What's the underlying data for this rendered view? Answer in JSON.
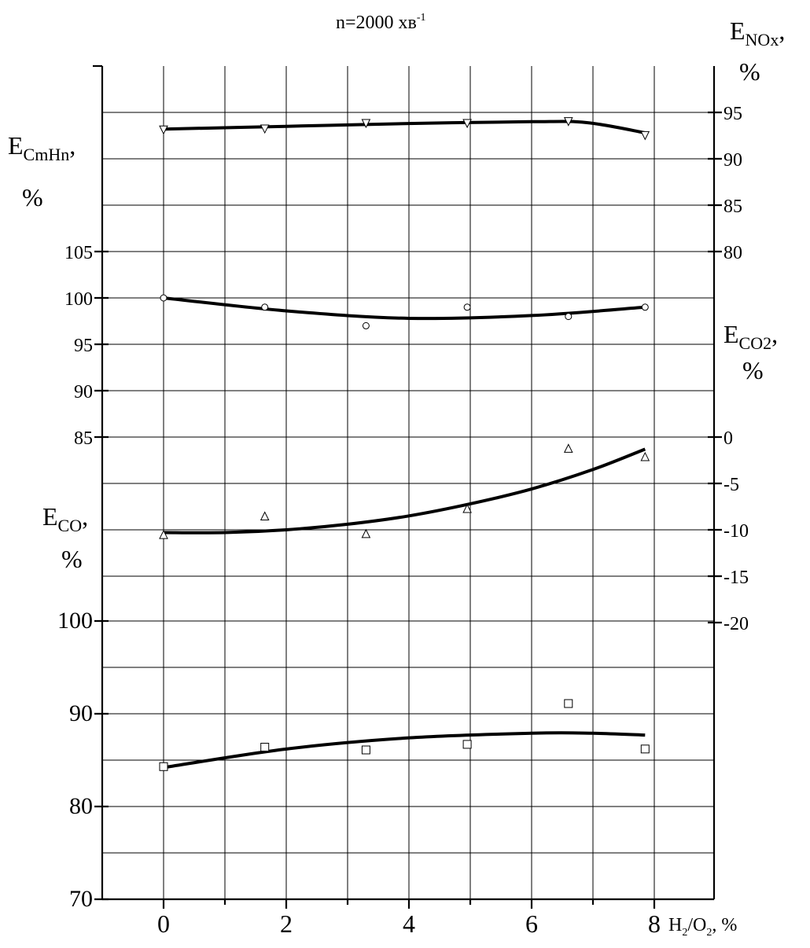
{
  "chart_data": {
    "type": "line",
    "title": "n=2000 хв",
    "title_superscript": "-1",
    "xlabel": "H",
    "xlabel_sub": "2",
    "xlabel_mid": "/O",
    "xlabel_tail": ", %",
    "xlim": [
      -1,
      9
    ],
    "x_ticks": [
      0,
      2,
      4,
      6,
      8
    ],
    "grid": true,
    "panels": [
      {
        "id": "cmhn",
        "ylabel_main": "E",
        "ylabel_sub": "CmHn",
        "ylabel_tail": ",",
        "ylabel_unit": "%",
        "axis": "left",
        "ticks": [
          85,
          90,
          95,
          100,
          105
        ],
        "series": [
          {
            "marker": "circle",
            "x": [
              0,
              1.65,
              3.3,
              4.95,
              6.6,
              7.85
            ],
            "y": [
              100,
              99,
              97,
              99,
              98,
              99
            ],
            "fit_x": [
              0,
              2,
              4,
              6,
              7.85
            ],
            "fit_y": [
              100,
              98.6,
              97.8,
              98.1,
              99
            ]
          }
        ]
      },
      {
        "id": "nox",
        "ylabel_main": "E",
        "ylabel_sub": "NOx",
        "ylabel_tail": ",",
        "ylabel_unit": "%",
        "axis": "right",
        "ticks": [
          80,
          85,
          90,
          95
        ],
        "series": [
          {
            "marker": "triangle-down",
            "x": [
              0,
              1.65,
              3.3,
              4.95,
              6.6,
              7.85
            ],
            "y": [
              93.2,
              93.3,
              93.9,
              93.9,
              94.1,
              92.6
            ],
            "fit_x": [
              0,
              2,
              4,
              6,
              6.9,
              7.85
            ],
            "fit_y": [
              93.2,
              93.5,
              93.8,
              94,
              93.9,
              92.8
            ]
          }
        ]
      },
      {
        "id": "co2",
        "ylabel_main": "E",
        "ylabel_sub": "CO2",
        "ylabel_tail": ",",
        "ylabel_unit": "%",
        "axis": "right",
        "ticks": [
          0,
          -5,
          -10,
          -15,
          -20
        ],
        "series": [
          {
            "marker": "triangle-up",
            "x": [
              0,
              1.65,
              3.3,
              4.95,
              6.6,
              7.85
            ],
            "y": [
              -10.6,
              -8.6,
              -10.5,
              -7.8,
              -1.3,
              -2.2
            ],
            "fit_x": [
              0,
              1,
              2,
              3,
              4,
              5,
              6,
              7,
              7.85
            ],
            "fit_y": [
              -10.3,
              -10.3,
              -10,
              -9.4,
              -8.5,
              -7.2,
              -5.6,
              -3.5,
              -1.3
            ]
          }
        ]
      },
      {
        "id": "co",
        "ylabel_main": "E",
        "ylabel_sub": "CO",
        "ylabel_tail": ",",
        "ylabel_unit": "%",
        "axis": "left",
        "ticks": [
          70,
          80,
          90,
          100
        ],
        "series": [
          {
            "marker": "square",
            "x": [
              0,
              1.65,
              3.3,
              4.95,
              6.6,
              7.85
            ],
            "y": [
              84.3,
              86.4,
              86.1,
              86.7,
              91.1,
              86.2
            ],
            "fit_x": [
              0,
              2,
              4,
              6,
              7,
              7.85
            ],
            "fit_y": [
              84.2,
              86.2,
              87.4,
              87.9,
              87.9,
              87.7
            ]
          }
        ]
      }
    ]
  }
}
